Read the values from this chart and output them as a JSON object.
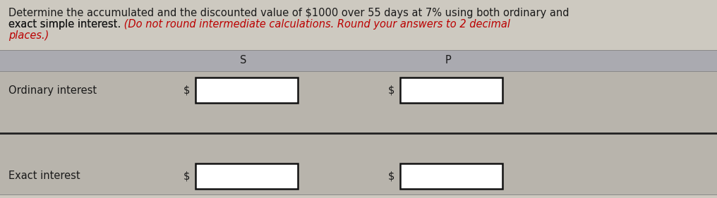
{
  "bg_color": "#cdc9c0",
  "line1_black": "Determine the accumulated and the discounted value of $1000 over 55 days at 7% using both ordinary and",
  "line2_black": "exact simple interest.",
  "line2_red": " (Do not round intermediate calculations. Round your answers to 2 decimal",
  "line3_red": "places.)",
  "row_labels": [
    "Ordinary interest",
    "Exact interest"
  ],
  "col_headers": [
    "S",
    "P"
  ],
  "table_bg": "#b8b4ac",
  "header_bg": "#aaaab0",
  "box_facecolor": "#ffffff",
  "box_edgecolor": "#111111",
  "text_color_black": "#1a1a1a",
  "text_color_red": "#bb0000",
  "font_size_title": 10.5,
  "font_size_table": 10.5,
  "fig_width": 10.16,
  "fig_height": 2.81,
  "dpi": 100
}
